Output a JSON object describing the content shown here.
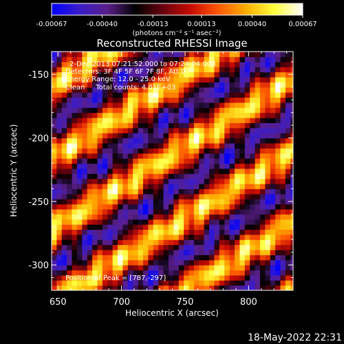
{
  "colorbar": {
    "ticks": [
      "-0.00067",
      "-0.00040",
      "-0.00013",
      "0.00013",
      "0.00040",
      "0.00067"
    ],
    "tick_values": [
      -0.00067,
      -0.0004,
      -0.00013,
      0.00013,
      0.0004,
      0.00067
    ],
    "range": [
      -0.00067,
      0.00067
    ],
    "label": "(photons cm⁻² s⁻¹ asec⁻²)",
    "colors": [
      "#0000ff",
      "#3a1cc8",
      "#5a1f8a",
      "#000000",
      "#6a0010",
      "#c80c00",
      "#ff5a00",
      "#ffb000",
      "#ffff40",
      "#ffffff"
    ]
  },
  "chart_data": {
    "type": "heatmap",
    "title": "Reconstructed RHESSI Image",
    "xlabel": "Heliocentric X (arcsec)",
    "ylabel": "Heliocentric Y (arcsec)",
    "xlim": [
      645,
      835
    ],
    "ylim": [
      -320,
      -132
    ],
    "xticks": [
      650,
      700,
      750,
      800
    ],
    "yticks": [
      -150,
      -200,
      -250,
      -300
    ],
    "xtick_labels": [
      "650",
      "700",
      "750",
      "800"
    ],
    "ytick_labels": [
      "-150",
      "-200",
      "-250",
      "-300"
    ],
    "annotations": [
      "2-Dec-2013 07:21:52.000 to 07:24:04.000",
      "Detectors: 3F 4F 5F 6F 7F 8F, Att 0",
      "Energy Range: 12.0 - 25.0 keV",
      "Clean     Total counts: 4.01E+03"
    ],
    "peak_label": "Position of Peak = [787,-297]",
    "peak": [
      787,
      -297
    ],
    "fringe_angle_deg": 32,
    "fringe_period_arcsec": 48,
    "grid": false
  },
  "footer": {
    "timestamp": "18-May-2022 22:31"
  }
}
